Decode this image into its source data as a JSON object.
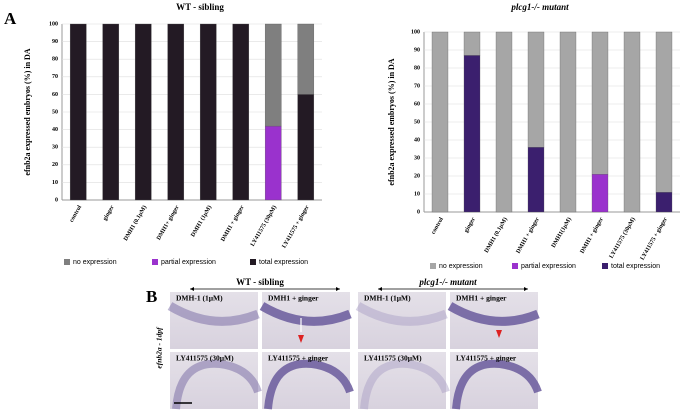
{
  "panel_a": {
    "label": "A"
  },
  "chart_data": [
    {
      "type": "bar",
      "title": "WT - sibling",
      "ylabel": "efnb2a expressed embryos (%) in DA",
      "categories": [
        "control",
        "ginger",
        "DMH1 (0.1µM)",
        "DMH1+ ginger",
        "DMH1 (1µM)",
        "DMH1 + ginger",
        "LY411575 (30µM)",
        "LY411575 + ginger"
      ],
      "series": [
        {
          "name": "no expression",
          "color": "#7f7f7f",
          "values": [
            0,
            0,
            0,
            0,
            0,
            0,
            58,
            40
          ]
        },
        {
          "name": "partial expression",
          "color": "#9a32cd",
          "values": [
            0,
            0,
            0,
            0,
            0,
            0,
            42,
            0
          ]
        },
        {
          "name": "total expression",
          "color": "#231a24",
          "values": [
            100,
            100,
            100,
            100,
            100,
            100,
            0,
            60
          ]
        }
      ],
      "ylim": [
        0,
        100
      ],
      "yticks": [
        0,
        10,
        20,
        30,
        40,
        50,
        60,
        70,
        80,
        90,
        100
      ],
      "grid": true,
      "stacked": true
    },
    {
      "type": "bar",
      "title": "plcg1-/- mutant",
      "ylabel": "efnb2a expressed embryos (%) in DA",
      "categories": [
        "control",
        "ginger",
        "DMH1 (0.1µM)",
        "DMH1 + ginger",
        "DMH1(1µM)",
        "DMH1 + ginger",
        "LY411575 (30µM)",
        "LY411575 + ginger"
      ],
      "series": [
        {
          "name": "no expression",
          "color": "#a6a6a6",
          "values": [
            100,
            13,
            100,
            64,
            100,
            79,
            100,
            89
          ]
        },
        {
          "name": "partial expression",
          "color": "#9a32cd",
          "values": [
            0,
            0,
            0,
            0,
            0,
            21,
            0,
            0
          ]
        },
        {
          "name": "total expression",
          "color": "#3b1f6e",
          "values": [
            0,
            87,
            0,
            36,
            0,
            0,
            0,
            11
          ]
        }
      ],
      "ylim": [
        0,
        100
      ],
      "yticks": [
        0,
        10,
        20,
        30,
        40,
        50,
        60,
        70,
        80,
        90,
        100
      ],
      "grid": true,
      "stacked": true
    }
  ],
  "panel_b": {
    "label": "B",
    "side_label": "efnb2a - 1dpf",
    "groups": [
      {
        "title": "WT - sibling",
        "panels": [
          "DMH-1 (1µM)",
          "DMH1 + ginger",
          "LY411575 (30µM)",
          "LY411575 + ginger"
        ]
      },
      {
        "title": "plcg1-/- mutant",
        "panels": [
          "DMH-1 (1µM)",
          "DMH1 + ginger",
          "LY411575 (30µM)",
          "LY411575 + ginger"
        ]
      }
    ]
  }
}
